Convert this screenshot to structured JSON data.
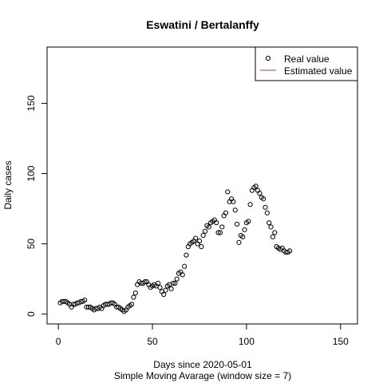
{
  "chart_data": {
    "type": "scatter",
    "title": "Eswatini / Bertalanffy",
    "xlabel": "Days since 2020-05-01",
    "subtitle": "Simple Moving Avarage (window size = 7)",
    "ylabel": "Daily cases",
    "xlim": [
      -6,
      159
    ],
    "ylim": [
      -7,
      190
    ],
    "xticks": [
      0,
      50,
      100,
      150
    ],
    "yticks": [
      0,
      50,
      100,
      150
    ],
    "legend_position": "top-right",
    "legend": [
      {
        "label": "Real value",
        "marker": "circle",
        "color": "#000000"
      },
      {
        "label": "Estimated value",
        "marker": "line",
        "color": "#9E3B9E"
      }
    ],
    "series": [
      {
        "name": "Real value",
        "x": [
          1,
          2,
          3,
          4,
          5,
          6,
          7,
          8,
          9,
          10,
          11,
          12,
          13,
          14,
          15,
          16,
          17,
          18,
          19,
          20,
          21,
          22,
          23,
          24,
          25,
          26,
          27,
          28,
          29,
          30,
          31,
          32,
          33,
          34,
          35,
          36,
          37,
          38,
          39,
          40,
          41,
          42,
          43,
          44,
          45,
          46,
          47,
          48,
          49,
          50,
          51,
          52,
          53,
          54,
          55,
          56,
          57,
          58,
          59,
          60,
          61,
          62,
          63,
          64,
          65,
          66,
          67,
          68,
          69,
          70,
          71,
          72,
          73,
          74,
          75,
          76,
          77,
          78,
          79,
          80,
          81,
          82,
          83,
          84,
          85,
          86,
          87,
          88,
          89,
          90,
          91,
          92,
          93,
          94,
          95,
          96,
          97,
          98,
          99,
          100,
          101,
          102,
          103,
          104,
          105,
          106,
          107,
          108,
          109,
          110,
          111,
          112,
          113,
          114,
          115,
          116,
          117,
          118,
          119,
          120,
          121,
          122,
          123
        ],
        "y": [
          8,
          9,
          9,
          9,
          8,
          7,
          5,
          7,
          7,
          8,
          8,
          9,
          9,
          10,
          5,
          5,
          5,
          4,
          3,
          4,
          4,
          5,
          4,
          6,
          7,
          7,
          7,
          8,
          8,
          7,
          5,
          5,
          4,
          3,
          2,
          3,
          5,
          6,
          7,
          12,
          15,
          21,
          23,
          22,
          22,
          23,
          23,
          21,
          19,
          20,
          21,
          20,
          22,
          19,
          16,
          14,
          17,
          20,
          21,
          18,
          22,
          22,
          25,
          29,
          30,
          28,
          34,
          42,
          48,
          50,
          51,
          52,
          54,
          50,
          52,
          48,
          56,
          59,
          63,
          62,
          65,
          66,
          67,
          65,
          58,
          58,
          62,
          70,
          72,
          87,
          80,
          82,
          80,
          74,
          64,
          51,
          56,
          55,
          60,
          65,
          66,
          78,
          88,
          90,
          91,
          88,
          86,
          83,
          82,
          76,
          72,
          65,
          62,
          55,
          58,
          48,
          47,
          46,
          47,
          45,
          44,
          44,
          45
        ]
      },
      {
        "name": "Estimated value",
        "x": [],
        "y": []
      }
    ]
  }
}
